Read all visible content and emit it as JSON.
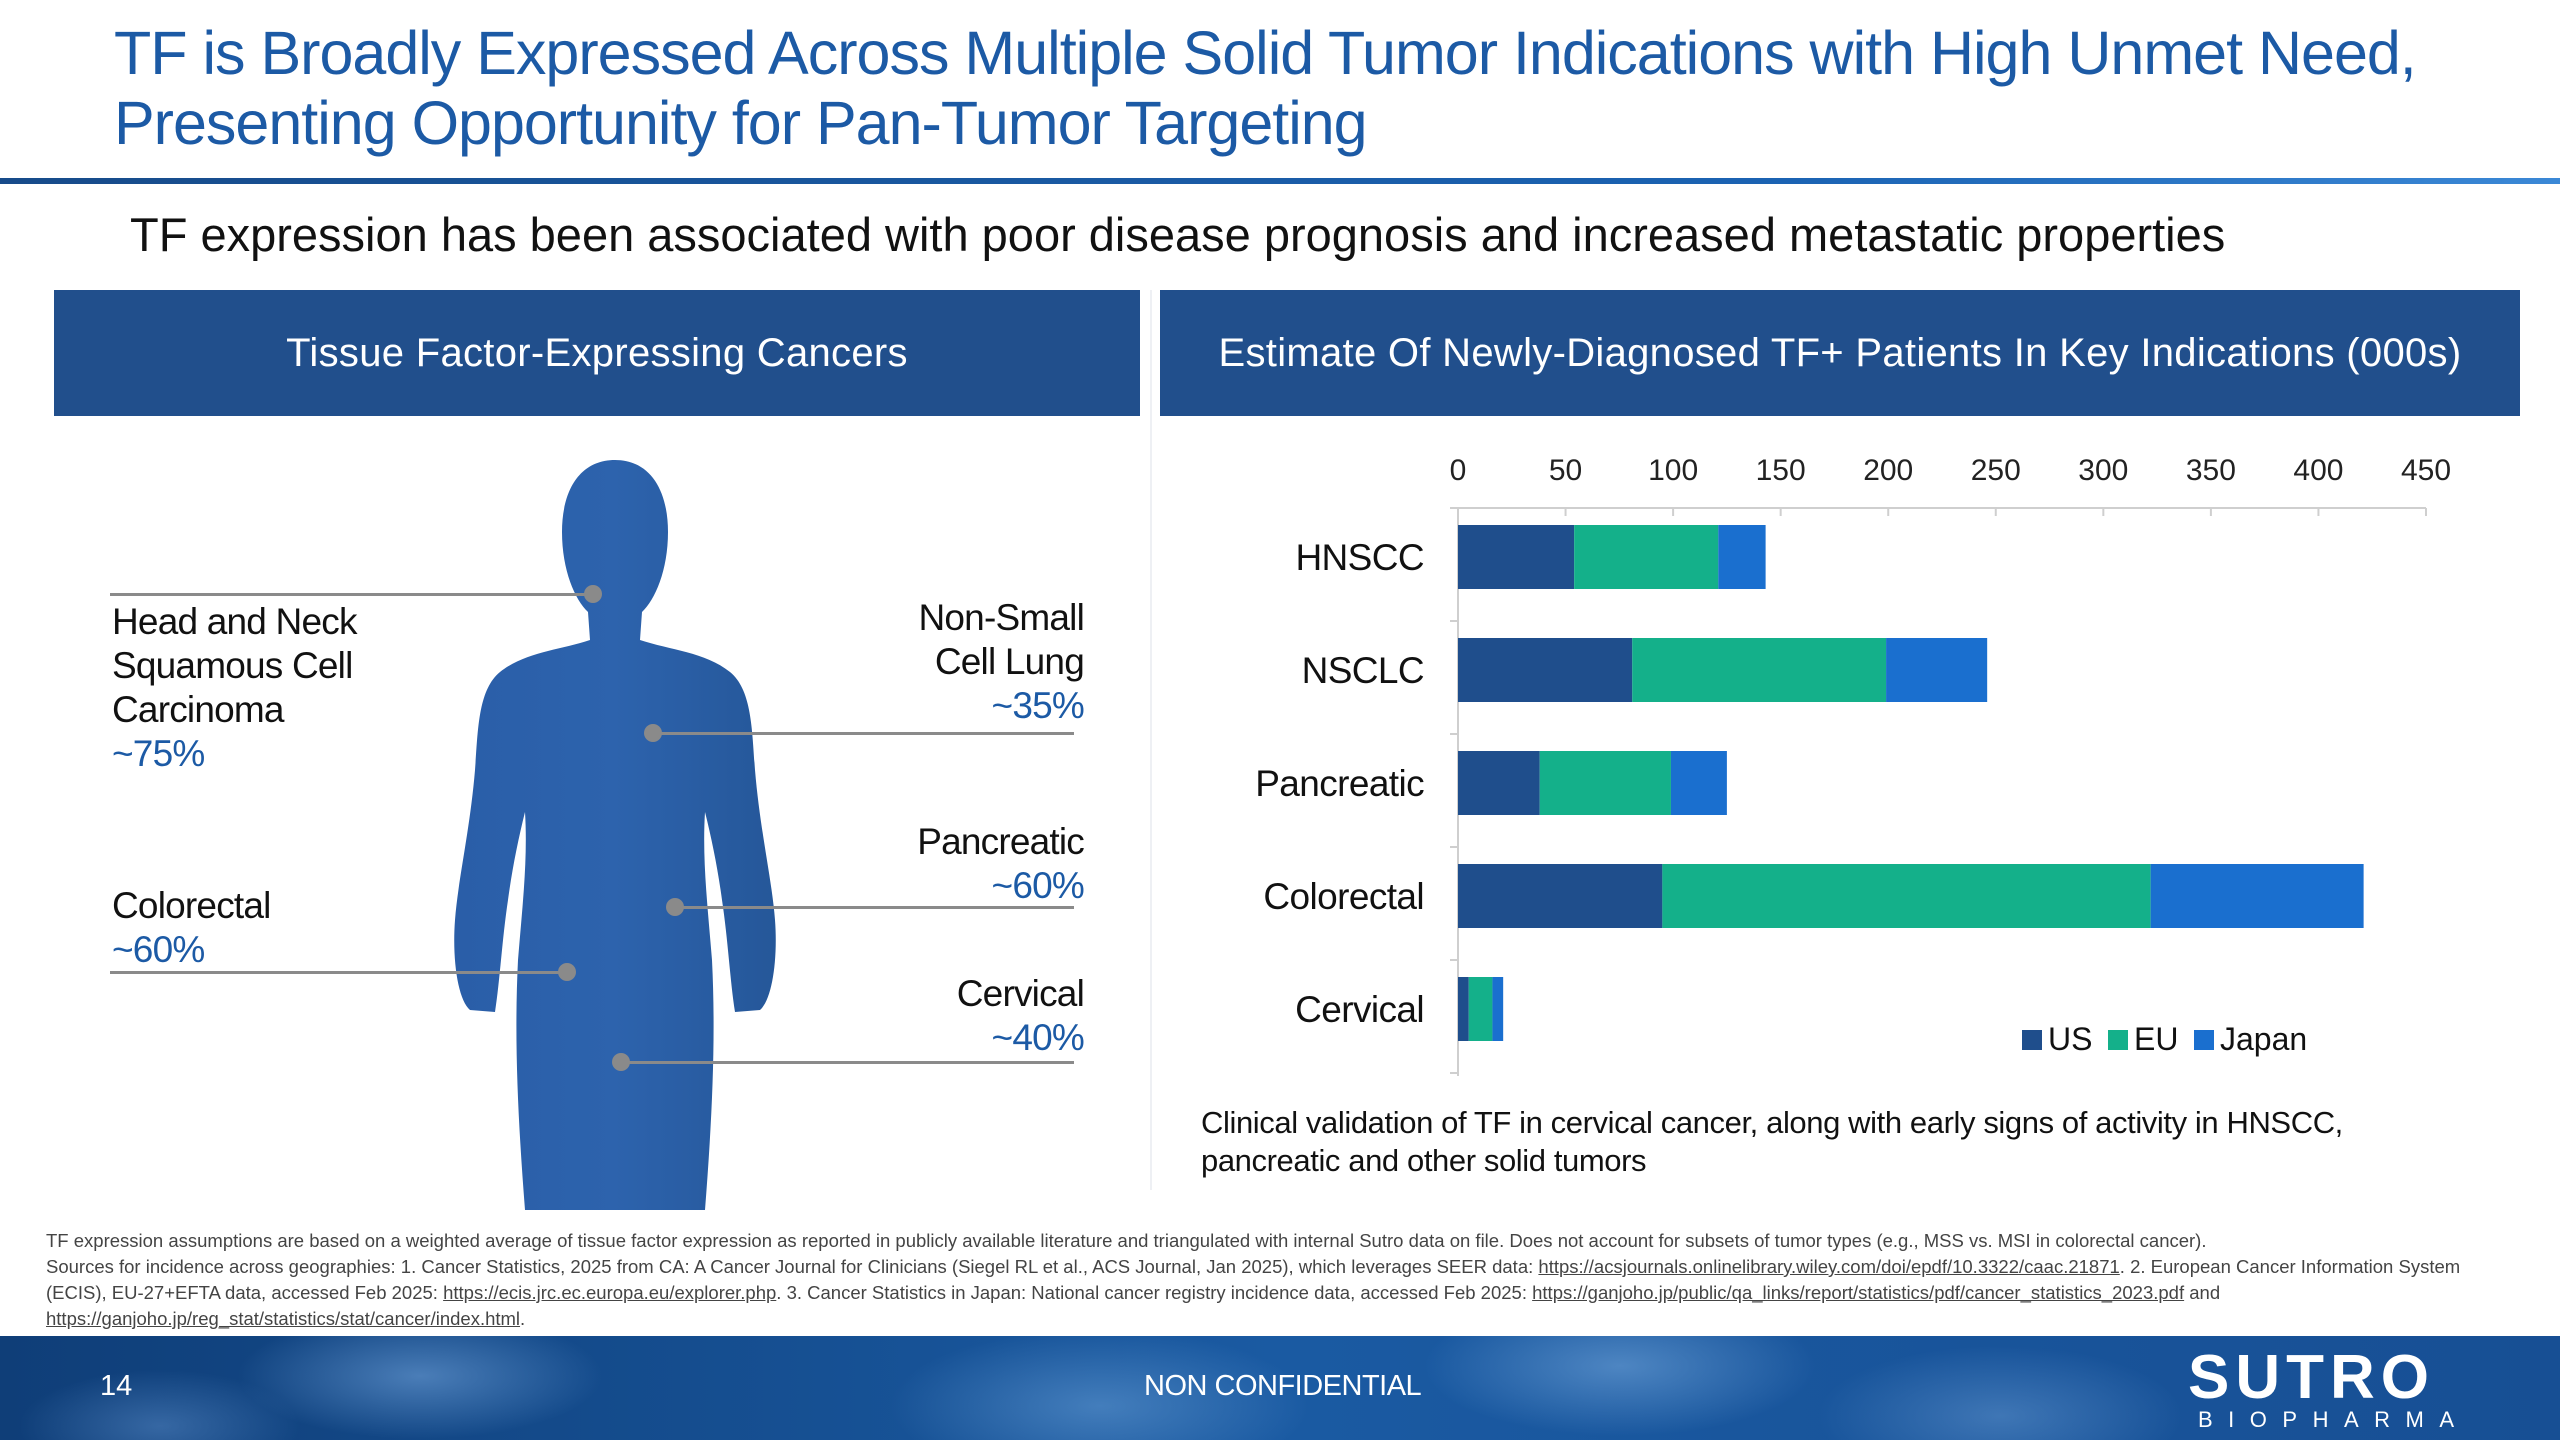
{
  "title": "TF is Broadly Expressed Across Multiple Solid Tumor Indications with High Unmet Need, Presenting Opportunity for Pan-Tumor Targeting",
  "subtitle": "TF expression has been associated with poor disease prognosis and increased metastatic properties",
  "left_panel": {
    "header": "Tissue Factor-Expressing Cancers",
    "callouts": {
      "hnscc": {
        "name": "Head and Neck Squamous Cell Carcinoma",
        "pct": "~75%"
      },
      "colorectal": {
        "name": "Colorectal",
        "pct": "~60%"
      },
      "nsclc": {
        "name": "Non-Small Cell Lung",
        "pct": "~35%"
      },
      "pancreatic": {
        "name": "Pancreatic",
        "pct": "~60%"
      },
      "cervical": {
        "name": "Cervical",
        "pct": "~40%"
      }
    }
  },
  "right_panel": {
    "header": "Estimate Of Newly-Diagnosed TF+ Patients In Key Indications (000s)",
    "note": "Clinical validation of TF in cervical cancer, along with early signs of activity in HNSCC, pancreatic and other solid tumors"
  },
  "chart_data": {
    "type": "bar",
    "orientation": "horizontal",
    "stacked": true,
    "categories": [
      "HNSCC",
      "NSCLC",
      "Pancreatic",
      "Colorectal",
      "Cervical"
    ],
    "series": [
      {
        "name": "US",
        "values": [
          54,
          81,
          38,
          95,
          5
        ]
      },
      {
        "name": "EU",
        "values": [
          67,
          118,
          61,
          227,
          11
        ]
      },
      {
        "name": "Japan",
        "values": [
          22,
          47,
          26,
          99,
          5
        ]
      }
    ],
    "xlim": [
      0,
      450
    ],
    "xticks": [
      "0",
      "50",
      "100",
      "150",
      "200",
      "250",
      "300",
      "350",
      "400",
      "450"
    ],
    "grid": false,
    "legend_position": "bottom-right",
    "colors": {
      "US": "#1f4e8c",
      "EU": "#14b08a",
      "Japan": "#1a6fcf"
    }
  },
  "footnote": {
    "line1": "TF expression assumptions are based on a weighted average of tissue factor expression as reported in publicly available literature and triangulated with internal Sutro data on file. Does not account for subsets of tumor types (e.g., MSS vs. MSI in colorectal cancer).",
    "line2_a": "Sources for incidence across geographies: 1. Cancer Statistics, 2025 from CA: A Cancer Journal for Clinicians (Siegel RL et al., ACS Journal, Jan 2025), which leverages SEER data: ",
    "link1": "https://acsjournals.onlinelibrary.wiley.com/doi/epdf/10.3322/caac.21871",
    "line2_b": ". 2. European Cancer Information System (ECIS), EU-27+EFTA data, accessed Feb 2025: ",
    "link2": "https://ecis.jrc.ec.europa.eu/explorer.php",
    "line2_c": ". 3. Cancer Statistics in Japan: National cancer registry incidence data, accessed Feb 2025: ",
    "link3": "https://ganjoho.jp/public/qa_links/report/statistics/pdf/cancer_statistics_2023.pdf",
    "line2_d": " and ",
    "link4": "https://ganjoho.jp/reg_stat/statistics/stat/cancer/index.html",
    "line2_e": "."
  },
  "footer": {
    "page_number": "14",
    "confidentiality": "NON CONFIDENTIAL",
    "logo_main": "SUTRO",
    "logo_sub": "BIOPHARMA"
  }
}
